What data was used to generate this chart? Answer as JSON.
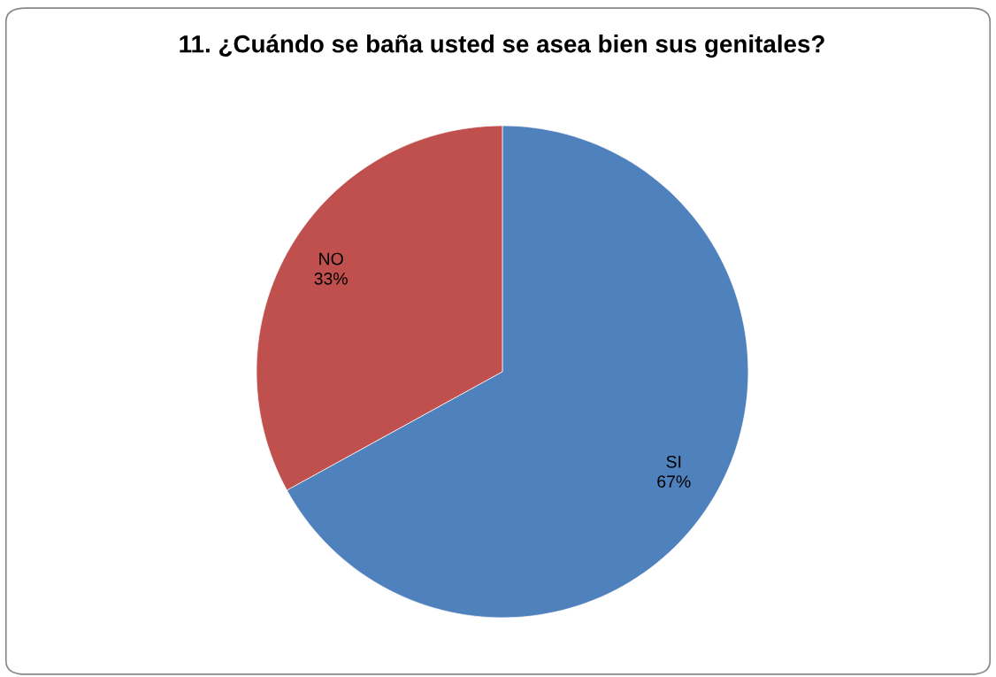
{
  "chart_data": {
    "type": "pie",
    "title": "11. ¿Cuándo se baña usted se asea bien sus genitales?",
    "categories": [
      "SI",
      "NO"
    ],
    "values": [
      67,
      33
    ],
    "colors": [
      "#4f81bd",
      "#c0504d"
    ],
    "value_labels": [
      "67%",
      "33%"
    ]
  }
}
